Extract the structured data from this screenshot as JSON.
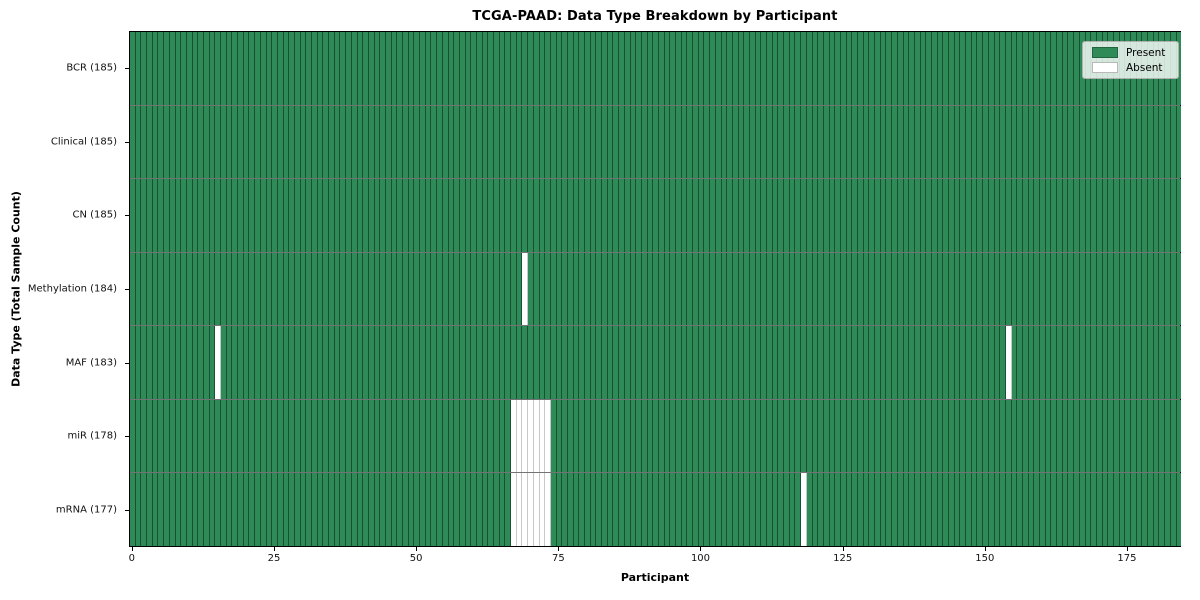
{
  "figure": {
    "title": "TCGA-PAAD: Data Type Breakdown by Participant",
    "xlabel": "Participant",
    "ylabel": "Data Type (Total Sample Count)"
  },
  "legend": {
    "present_label": "Present",
    "absent_label": "Absent",
    "position": "upper right"
  },
  "colors": {
    "present": "#2e8b57",
    "absent": "#ffffff",
    "cell_edge_on_present": "rgba(0,0,0,0.42)",
    "cell_edge_on_absent": "#c8c8c8",
    "row_divider": "rgba(0,0,0,0.55)",
    "frame": "#000000",
    "legend_background": "rgba(255,255,255,0.8)"
  },
  "chart_data": {
    "type": "heatmap",
    "subtype": "binary-presence-matrix",
    "title": "TCGA-PAAD: Data Type Breakdown by Participant",
    "xlabel": "Participant",
    "ylabel": "Data Type (Total Sample Count)",
    "n_participants": 185,
    "x_ticks": [
      0,
      25,
      50,
      75,
      100,
      125,
      150,
      175
    ],
    "x_range": [
      0,
      185
    ],
    "grid": false,
    "legend": [
      "Present",
      "Absent"
    ],
    "legend_position": "upper right",
    "rows": [
      {
        "label": "BCR (185)",
        "data_type": "BCR",
        "present_count": 185,
        "absent_count": 0,
        "absent_participants": []
      },
      {
        "label": "Clinical (185)",
        "data_type": "Clinical",
        "present_count": 185,
        "absent_count": 0,
        "absent_participants": []
      },
      {
        "label": "CN (185)",
        "data_type": "CN",
        "present_count": 185,
        "absent_count": 0,
        "absent_participants": []
      },
      {
        "label": "Methylation (184)",
        "data_type": "Methylation",
        "present_count": 184,
        "absent_count": 1,
        "absent_participants": [
          69
        ]
      },
      {
        "label": "MAF (183)",
        "data_type": "MAF",
        "present_count": 183,
        "absent_count": 2,
        "absent_participants": [
          15,
          154
        ]
      },
      {
        "label": "miR (178)",
        "data_type": "miR",
        "present_count": 178,
        "absent_count": 7,
        "absent_participants": [
          67,
          68,
          69,
          70,
          71,
          72,
          73
        ]
      },
      {
        "label": "mRNA (177)",
        "data_type": "mRNA",
        "present_count": 177,
        "absent_count": 8,
        "absent_participants": [
          67,
          68,
          69,
          70,
          71,
          72,
          73,
          118
        ]
      }
    ]
  }
}
